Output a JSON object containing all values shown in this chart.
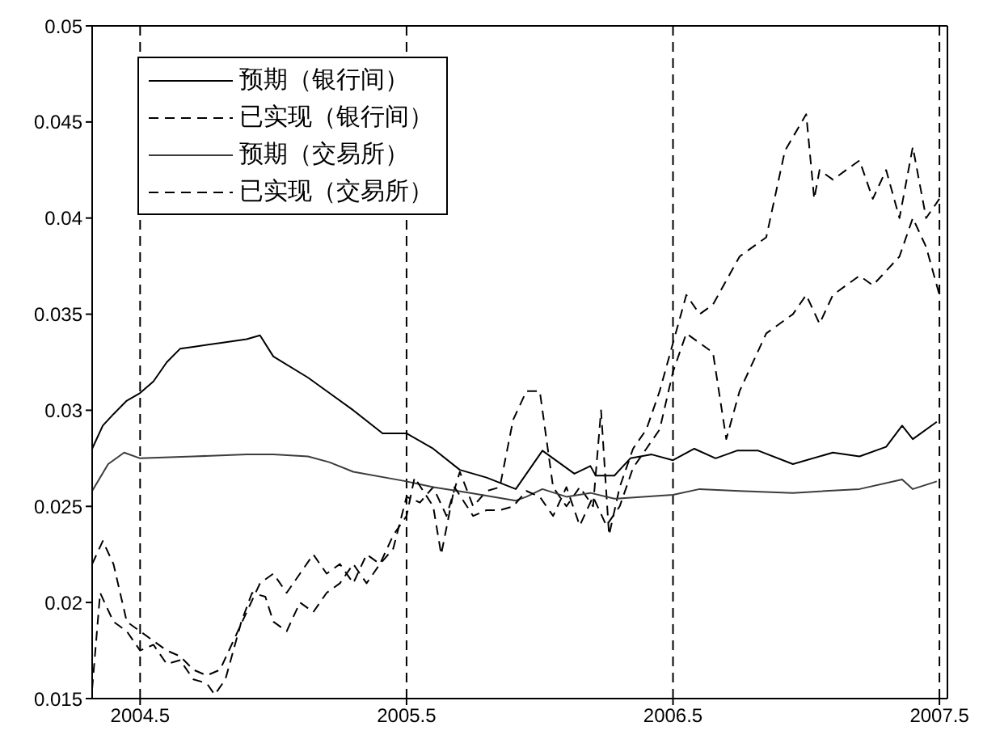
{
  "chart_data": {
    "type": "line",
    "xlim": [
      2004.32,
      2007.53
    ],
    "xticks": [
      2004.5,
      2005.5,
      2006.5,
      2007.5
    ],
    "ylim": [
      0.015,
      0.05
    ],
    "yticks": [
      0.015,
      0.02,
      0.025,
      0.03,
      0.035,
      0.04,
      0.045,
      0.05
    ],
    "grid": false,
    "legend": "top left",
    "marker": "none",
    "ref_lines": [
      {
        "axis": "x",
        "value": 2004.5,
        "color": "#000000",
        "line_style": "dashed"
      },
      {
        "axis": "x",
        "value": 2005.5,
        "color": "#000000",
        "line_style": "dashed"
      },
      {
        "axis": "x",
        "value": 2006.5,
        "color": "#000000",
        "line_style": "dashed"
      },
      {
        "axis": "x",
        "value": 2007.5,
        "color": "#000000",
        "line_style": "dashed"
      }
    ],
    "series": [
      {
        "name": "预期（银行间）",
        "color": "#000000",
        "line_style": "solid",
        "x": [
          2004.32,
          2004.36,
          2004.4,
          2004.45,
          2004.5,
          2004.55,
          2004.6,
          2004.65,
          2004.7,
          2004.8,
          2004.9,
          2004.95,
          2005.0,
          2005.13,
          2005.21,
          2005.3,
          2005.41,
          2005.5,
          2005.6,
          2005.7,
          2005.8,
          2005.91,
          2006.01,
          2006.13,
          2006.19,
          2006.21,
          2006.28,
          2006.34,
          2006.42,
          2006.5,
          2006.58,
          2006.66,
          2006.74,
          2006.82,
          2006.95,
          2007.1,
          2007.2,
          2007.3,
          2007.36,
          2007.4,
          2007.49
        ],
        "values": [
          0.028,
          0.0292,
          0.0298,
          0.0305,
          0.0309,
          0.0315,
          0.0325,
          0.0332,
          0.0333,
          0.0335,
          0.0337,
          0.0339,
          0.0328,
          0.0317,
          0.0309,
          0.03,
          0.0288,
          0.0288,
          0.028,
          0.0269,
          0.0265,
          0.0259,
          0.0279,
          0.0267,
          0.0271,
          0.0266,
          0.0266,
          0.0275,
          0.0277,
          0.0274,
          0.028,
          0.0275,
          0.0279,
          0.0279,
          0.0272,
          0.0278,
          0.0276,
          0.0281,
          0.0292,
          0.0285,
          0.0294
        ]
      },
      {
        "name": "已实现（银行间）",
        "color": "#000000",
        "line_style": "dashed",
        "x": [
          2004.32,
          2004.35,
          2004.4,
          2004.45,
          2004.5,
          2004.55,
          2004.6,
          2004.65,
          2004.7,
          2004.75,
          2004.78,
          2004.82,
          2004.88,
          2004.92,
          2004.97,
          2005.0,
          2005.05,
          2005.1,
          2005.15,
          2005.2,
          2005.25,
          2005.3,
          2005.35,
          2005.4,
          2005.45,
          2005.5,
          2005.55,
          2005.6,
          2005.65,
          2005.7,
          2005.75,
          2005.8,
          2005.85,
          2005.9,
          2005.95,
          2006.0,
          2006.05,
          2006.1,
          2006.15,
          2006.2,
          2006.23,
          2006.26,
          2006.3,
          2006.35,
          2006.4,
          2006.45,
          2006.5,
          2006.55,
          2006.6,
          2006.65,
          2006.75,
          2006.85,
          2006.92,
          2007.0,
          2007.03,
          2007.05,
          2007.1,
          2007.2,
          2007.25,
          2007.3,
          2007.35,
          2007.4,
          2007.45,
          2007.5
        ],
        "values": [
          0.0155,
          0.0205,
          0.019,
          0.0185,
          0.0175,
          0.0178,
          0.0168,
          0.017,
          0.016,
          0.0158,
          0.0152,
          0.016,
          0.019,
          0.0205,
          0.0203,
          0.019,
          0.0185,
          0.02,
          0.0195,
          0.0205,
          0.021,
          0.022,
          0.021,
          0.022,
          0.0228,
          0.0255,
          0.0252,
          0.026,
          0.0245,
          0.0268,
          0.025,
          0.0258,
          0.026,
          0.0295,
          0.031,
          0.031,
          0.026,
          0.025,
          0.026,
          0.025,
          0.03,
          0.0235,
          0.026,
          0.028,
          0.029,
          0.031,
          0.0335,
          0.036,
          0.035,
          0.0355,
          0.038,
          0.039,
          0.0435,
          0.0454,
          0.041,
          0.0425,
          0.042,
          0.043,
          0.041,
          0.0425,
          0.04,
          0.0437,
          0.04,
          0.041
        ]
      },
      {
        "name": "预期（交易所）",
        "color": "#3c3c3c",
        "line_style": "solid",
        "x": [
          2004.32,
          2004.38,
          2004.44,
          2004.5,
          2004.7,
          2004.9,
          2005.0,
          2005.13,
          2005.21,
          2005.3,
          2005.5,
          2005.6,
          2005.74,
          2005.91,
          2005.95,
          2006.01,
          2006.1,
          2006.19,
          2006.28,
          2006.5,
          2006.6,
          2006.75,
          2006.95,
          2007.2,
          2007.36,
          2007.4,
          2007.49
        ],
        "values": [
          0.0258,
          0.0272,
          0.0278,
          0.0275,
          0.0276,
          0.0277,
          0.0277,
          0.0276,
          0.0273,
          0.0268,
          0.0263,
          0.026,
          0.0257,
          0.0253,
          0.0255,
          0.0259,
          0.0255,
          0.0257,
          0.0254,
          0.0256,
          0.0259,
          0.0258,
          0.0257,
          0.0259,
          0.0264,
          0.0259,
          0.0263
        ]
      },
      {
        "name": "已实现（交易所）",
        "color": "#000000",
        "line_style": "dashed",
        "x": [
          2004.32,
          2004.36,
          2004.4,
          2004.45,
          2004.5,
          2004.55,
          2004.6,
          2004.65,
          2004.7,
          2004.75,
          2004.8,
          2004.85,
          2004.9,
          2004.95,
          2005.0,
          2005.05,
          2005.1,
          2005.15,
          2005.2,
          2005.25,
          2005.3,
          2005.35,
          2005.4,
          2005.45,
          2005.5,
          2005.53,
          2005.6,
          2005.63,
          2005.68,
          2005.75,
          2005.8,
          2005.85,
          2005.9,
          2005.95,
          2006.0,
          2006.05,
          2006.1,
          2006.15,
          2006.2,
          2006.25,
          2006.3,
          2006.35,
          2006.4,
          2006.45,
          2006.5,
          2006.55,
          2006.65,
          2006.7,
          2006.75,
          2006.85,
          2006.95,
          2007.0,
          2007.05,
          2007.1,
          2007.2,
          2007.25,
          2007.35,
          2007.4,
          2007.45,
          2007.5
        ],
        "values": [
          0.022,
          0.0232,
          0.022,
          0.019,
          0.0185,
          0.018,
          0.0175,
          0.0172,
          0.0165,
          0.0162,
          0.0165,
          0.018,
          0.0195,
          0.021,
          0.0215,
          0.0205,
          0.0215,
          0.0225,
          0.0215,
          0.022,
          0.021,
          0.0225,
          0.022,
          0.0235,
          0.0245,
          0.0265,
          0.025,
          0.0225,
          0.026,
          0.0245,
          0.0248,
          0.0248,
          0.025,
          0.0258,
          0.0255,
          0.0245,
          0.026,
          0.024,
          0.0255,
          0.024,
          0.025,
          0.027,
          0.028,
          0.029,
          0.032,
          0.034,
          0.033,
          0.0285,
          0.031,
          0.034,
          0.035,
          0.036,
          0.0345,
          0.036,
          0.037,
          0.0365,
          0.038,
          0.04,
          0.0385,
          0.036
        ]
      }
    ]
  }
}
